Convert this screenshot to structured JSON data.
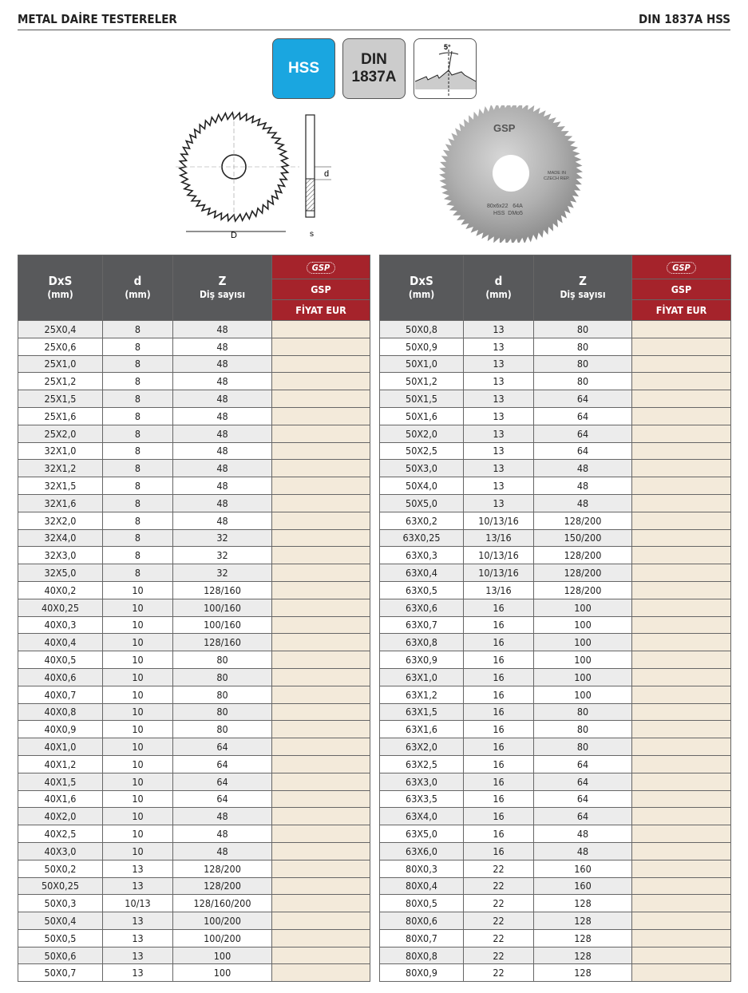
{
  "header": {
    "title": "METAL DAİRE TESTERELER",
    "standard": "DIN 1837A HSS"
  },
  "badges": {
    "material": "HSS",
    "din_line1": "DIN",
    "din_line2": "1837A",
    "angle": "5°"
  },
  "drawing": {
    "dim_D": "D",
    "dim_d": "d",
    "dim_s": "s"
  },
  "photo": {
    "logo": "GSP",
    "made_in_1": "MADE IN",
    "made_in_2": "CZECH REP.",
    "marking_1": "80x6x22   64A",
    "marking_2": "HSS  DMo5"
  },
  "colors": {
    "hss_badge": "#1aa6e0",
    "header_gray": "#58595b",
    "brand_red": "#a5232b",
    "price_cell": "#f3eada"
  },
  "table_header": {
    "dxs": "DxS",
    "dxs_unit": "(mm)",
    "d": "d",
    "d_unit": "(mm)",
    "z": "Z",
    "z_sub": "Diş sayısı",
    "logo": "GSP",
    "brand": "GSP",
    "price": "FİYAT EUR"
  },
  "left_rows": [
    [
      "25X0,4",
      "8",
      "48"
    ],
    [
      "25X0,6",
      "8",
      "48"
    ],
    [
      "25X1,0",
      "8",
      "48"
    ],
    [
      "25X1,2",
      "8",
      "48"
    ],
    [
      "25X1,5",
      "8",
      "48"
    ],
    [
      "25X1,6",
      "8",
      "48"
    ],
    [
      "25X2,0",
      "8",
      "48"
    ],
    [
      "32X1,0",
      "8",
      "48"
    ],
    [
      "32X1,2",
      "8",
      "48"
    ],
    [
      "32X1,5",
      "8",
      "48"
    ],
    [
      "32X1,6",
      "8",
      "48"
    ],
    [
      "32X2,0",
      "8",
      "48"
    ],
    [
      "32X4,0",
      "8",
      "32"
    ],
    [
      "32X3,0",
      "8",
      "32"
    ],
    [
      "32X5,0",
      "8",
      "32"
    ],
    [
      "40X0,2",
      "10",
      "128/160"
    ],
    [
      "40X0,25",
      "10",
      "100/160"
    ],
    [
      "40X0,3",
      "10",
      "100/160"
    ],
    [
      "40X0,4",
      "10",
      "128/160"
    ],
    [
      "40X0,5",
      "10",
      "80"
    ],
    [
      "40X0,6",
      "10",
      "80"
    ],
    [
      "40X0,7",
      "10",
      "80"
    ],
    [
      "40X0,8",
      "10",
      "80"
    ],
    [
      "40X0,9",
      "10",
      "80"
    ],
    [
      "40X1,0",
      "10",
      "64"
    ],
    [
      "40X1,2",
      "10",
      "64"
    ],
    [
      "40X1,5",
      "10",
      "64"
    ],
    [
      "40X1,6",
      "10",
      "64"
    ],
    [
      "40X2,0",
      "10",
      "48"
    ],
    [
      "40X2,5",
      "10",
      "48"
    ],
    [
      "40X3,0",
      "10",
      "48"
    ],
    [
      "50X0,2",
      "13",
      "128/200"
    ],
    [
      "50X0,25",
      "13",
      "128/200"
    ],
    [
      "50X0,3",
      "10/13",
      "128/160/200"
    ],
    [
      "50X0,4",
      "13",
      "100/200"
    ],
    [
      "50X0,5",
      "13",
      "100/200"
    ],
    [
      "50X0,6",
      "13",
      "100"
    ],
    [
      "50X0,7",
      "13",
      "100"
    ]
  ],
  "right_rows": [
    [
      "50X0,8",
      "13",
      "80"
    ],
    [
      "50X0,9",
      "13",
      "80"
    ],
    [
      "50X1,0",
      "13",
      "80"
    ],
    [
      "50X1,2",
      "13",
      "80"
    ],
    [
      "50X1,5",
      "13",
      "64"
    ],
    [
      "50X1,6",
      "13",
      "64"
    ],
    [
      "50X2,0",
      "13",
      "64"
    ],
    [
      "50X2,5",
      "13",
      "64"
    ],
    [
      "50X3,0",
      "13",
      "48"
    ],
    [
      "50X4,0",
      "13",
      "48"
    ],
    [
      "50X5,0",
      "13",
      "48"
    ],
    [
      "63X0,2",
      "10/13/16",
      "128/200"
    ],
    [
      "63X0,25",
      "13/16",
      "150/200"
    ],
    [
      "63X0,3",
      "10/13/16",
      "128/200"
    ],
    [
      "63X0,4",
      "10/13/16",
      "128/200"
    ],
    [
      "63X0,5",
      "13/16",
      "128/200"
    ],
    [
      "63X0,6",
      "16",
      "100"
    ],
    [
      "63X0,7",
      "16",
      "100"
    ],
    [
      "63X0,8",
      "16",
      "100"
    ],
    [
      "63X0,9",
      "16",
      "100"
    ],
    [
      "63X1,0",
      "16",
      "100"
    ],
    [
      "63X1,2",
      "16",
      "100"
    ],
    [
      "63X1,5",
      "16",
      "80"
    ],
    [
      "63X1,6",
      "16",
      "80"
    ],
    [
      "63X2,0",
      "16",
      "80"
    ],
    [
      "63X2,5",
      "16",
      "64"
    ],
    [
      "63X3,0",
      "16",
      "64"
    ],
    [
      "63X3,5",
      "16",
      "64"
    ],
    [
      "63X4,0",
      "16",
      "64"
    ],
    [
      "63X5,0",
      "16",
      "48"
    ],
    [
      "63X6,0",
      "16",
      "48"
    ],
    [
      "80X0,3",
      "22",
      "160"
    ],
    [
      "80X0,4",
      "22",
      "160"
    ],
    [
      "80X0,5",
      "22",
      "128"
    ],
    [
      "80X0,6",
      "22",
      "128"
    ],
    [
      "80X0,7",
      "22",
      "128"
    ],
    [
      "80X0,8",
      "22",
      "128"
    ],
    [
      "80X0,9",
      "22",
      "128"
    ]
  ]
}
